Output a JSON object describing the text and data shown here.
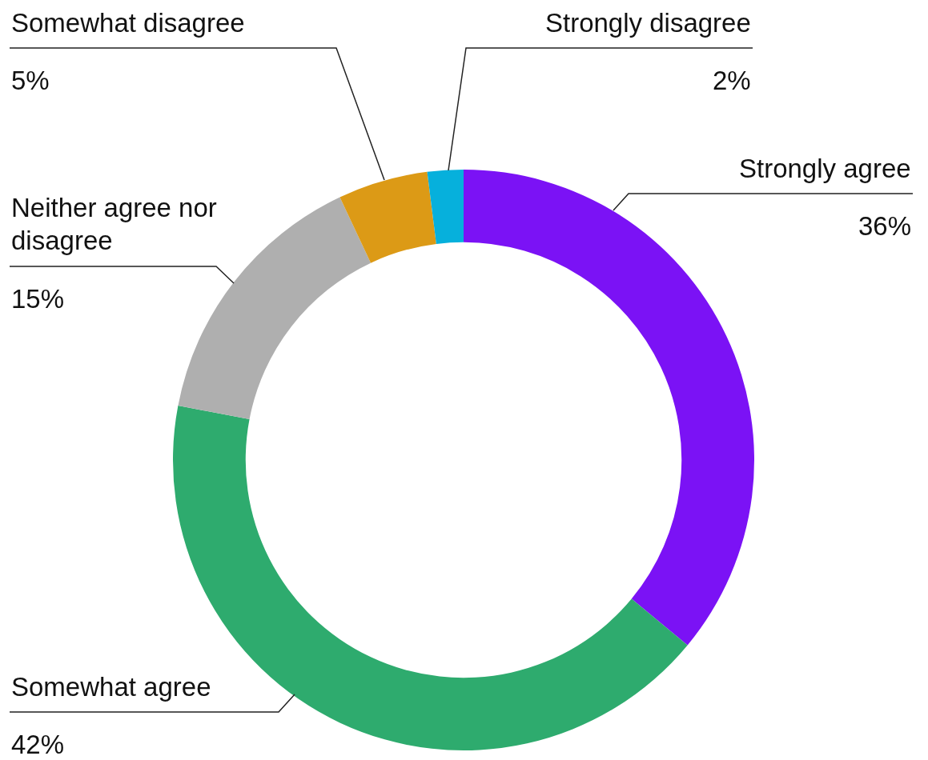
{
  "chart_data": {
    "type": "donut",
    "categories": [
      "Strongly agree",
      "Somewhat agree",
      "Neither agree nor disagree",
      "Somewhat disagree",
      "Strongly disagree"
    ],
    "values": [
      36,
      42,
      15,
      5,
      2
    ],
    "value_labels": [
      "36%",
      "42%",
      "15%",
      "5%",
      "2%"
    ],
    "colors": [
      "#7b12f5",
      "#2eab6e",
      "#afafaf",
      "#dc9a16",
      "#06b0dc"
    ],
    "legend": false
  }
}
